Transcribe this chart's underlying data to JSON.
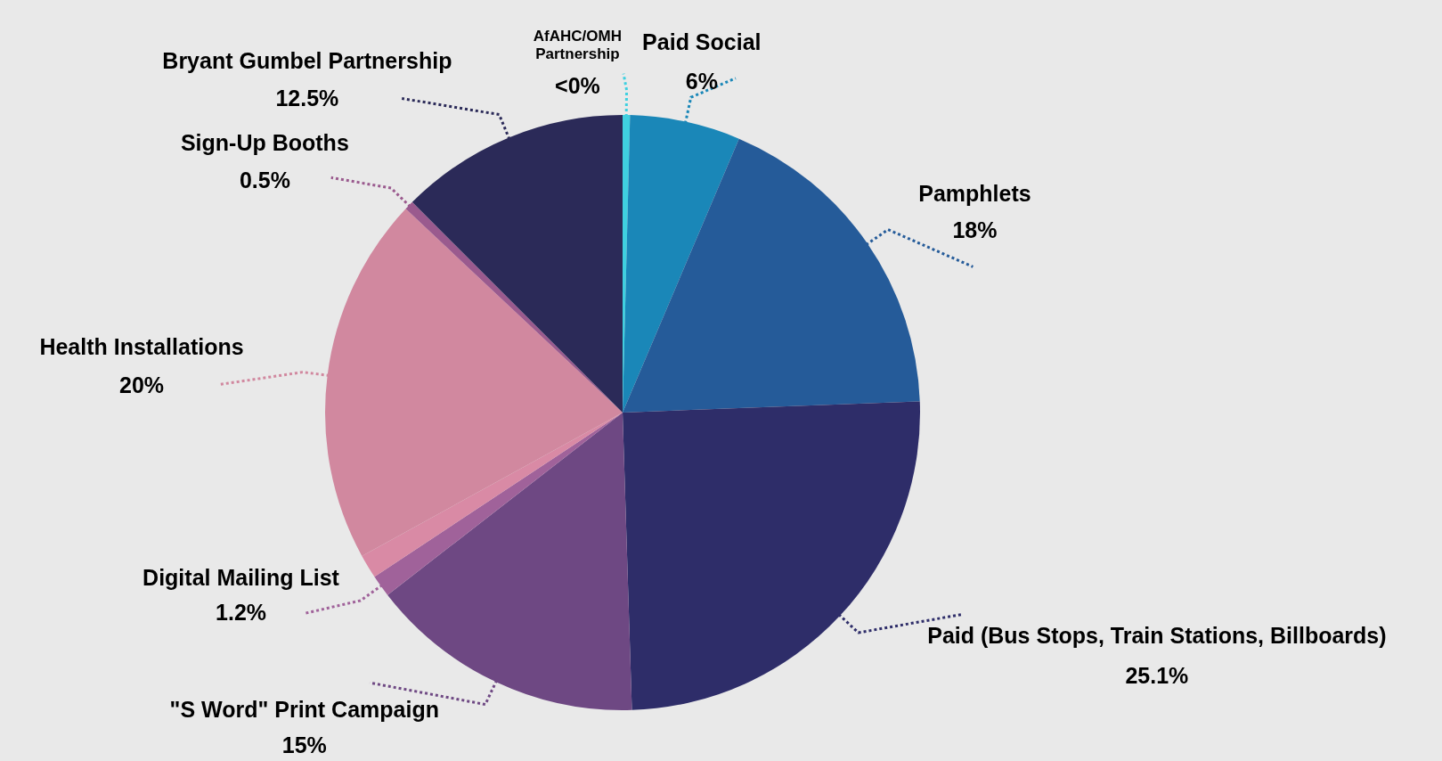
{
  "chart_data": {
    "type": "pie",
    "categories": [
      "AfAHC/OMH Partnership",
      "Paid Social",
      "Pamphlets",
      "Paid (Bus Stops, Train Stations, Billboards)",
      "\"S Word\" Print Campaign",
      "Digital Mailing List",
      null,
      "Health Installations",
      "Sign-Up Booths",
      "Bryant Gumbel Partnership"
    ],
    "values": [
      0.4,
      6,
      18,
      25.1,
      15,
      1.2,
      1.3,
      20,
      0.5,
      12.5
    ],
    "value_labels": [
      "<0%",
      "6%",
      "18%",
      "25.1%",
      "15%",
      "1.2%",
      null,
      "20%",
      "0.5%",
      "12.5%"
    ],
    "colors": [
      "#3fd0e0",
      "#1a87b8",
      "#255b99",
      "#2e2d69",
      "#6e4883",
      "#a0629a",
      "#d98aa5",
      "#d1889f",
      "#9a5a8e",
      "#2b2a58"
    ],
    "legend": false
  }
}
